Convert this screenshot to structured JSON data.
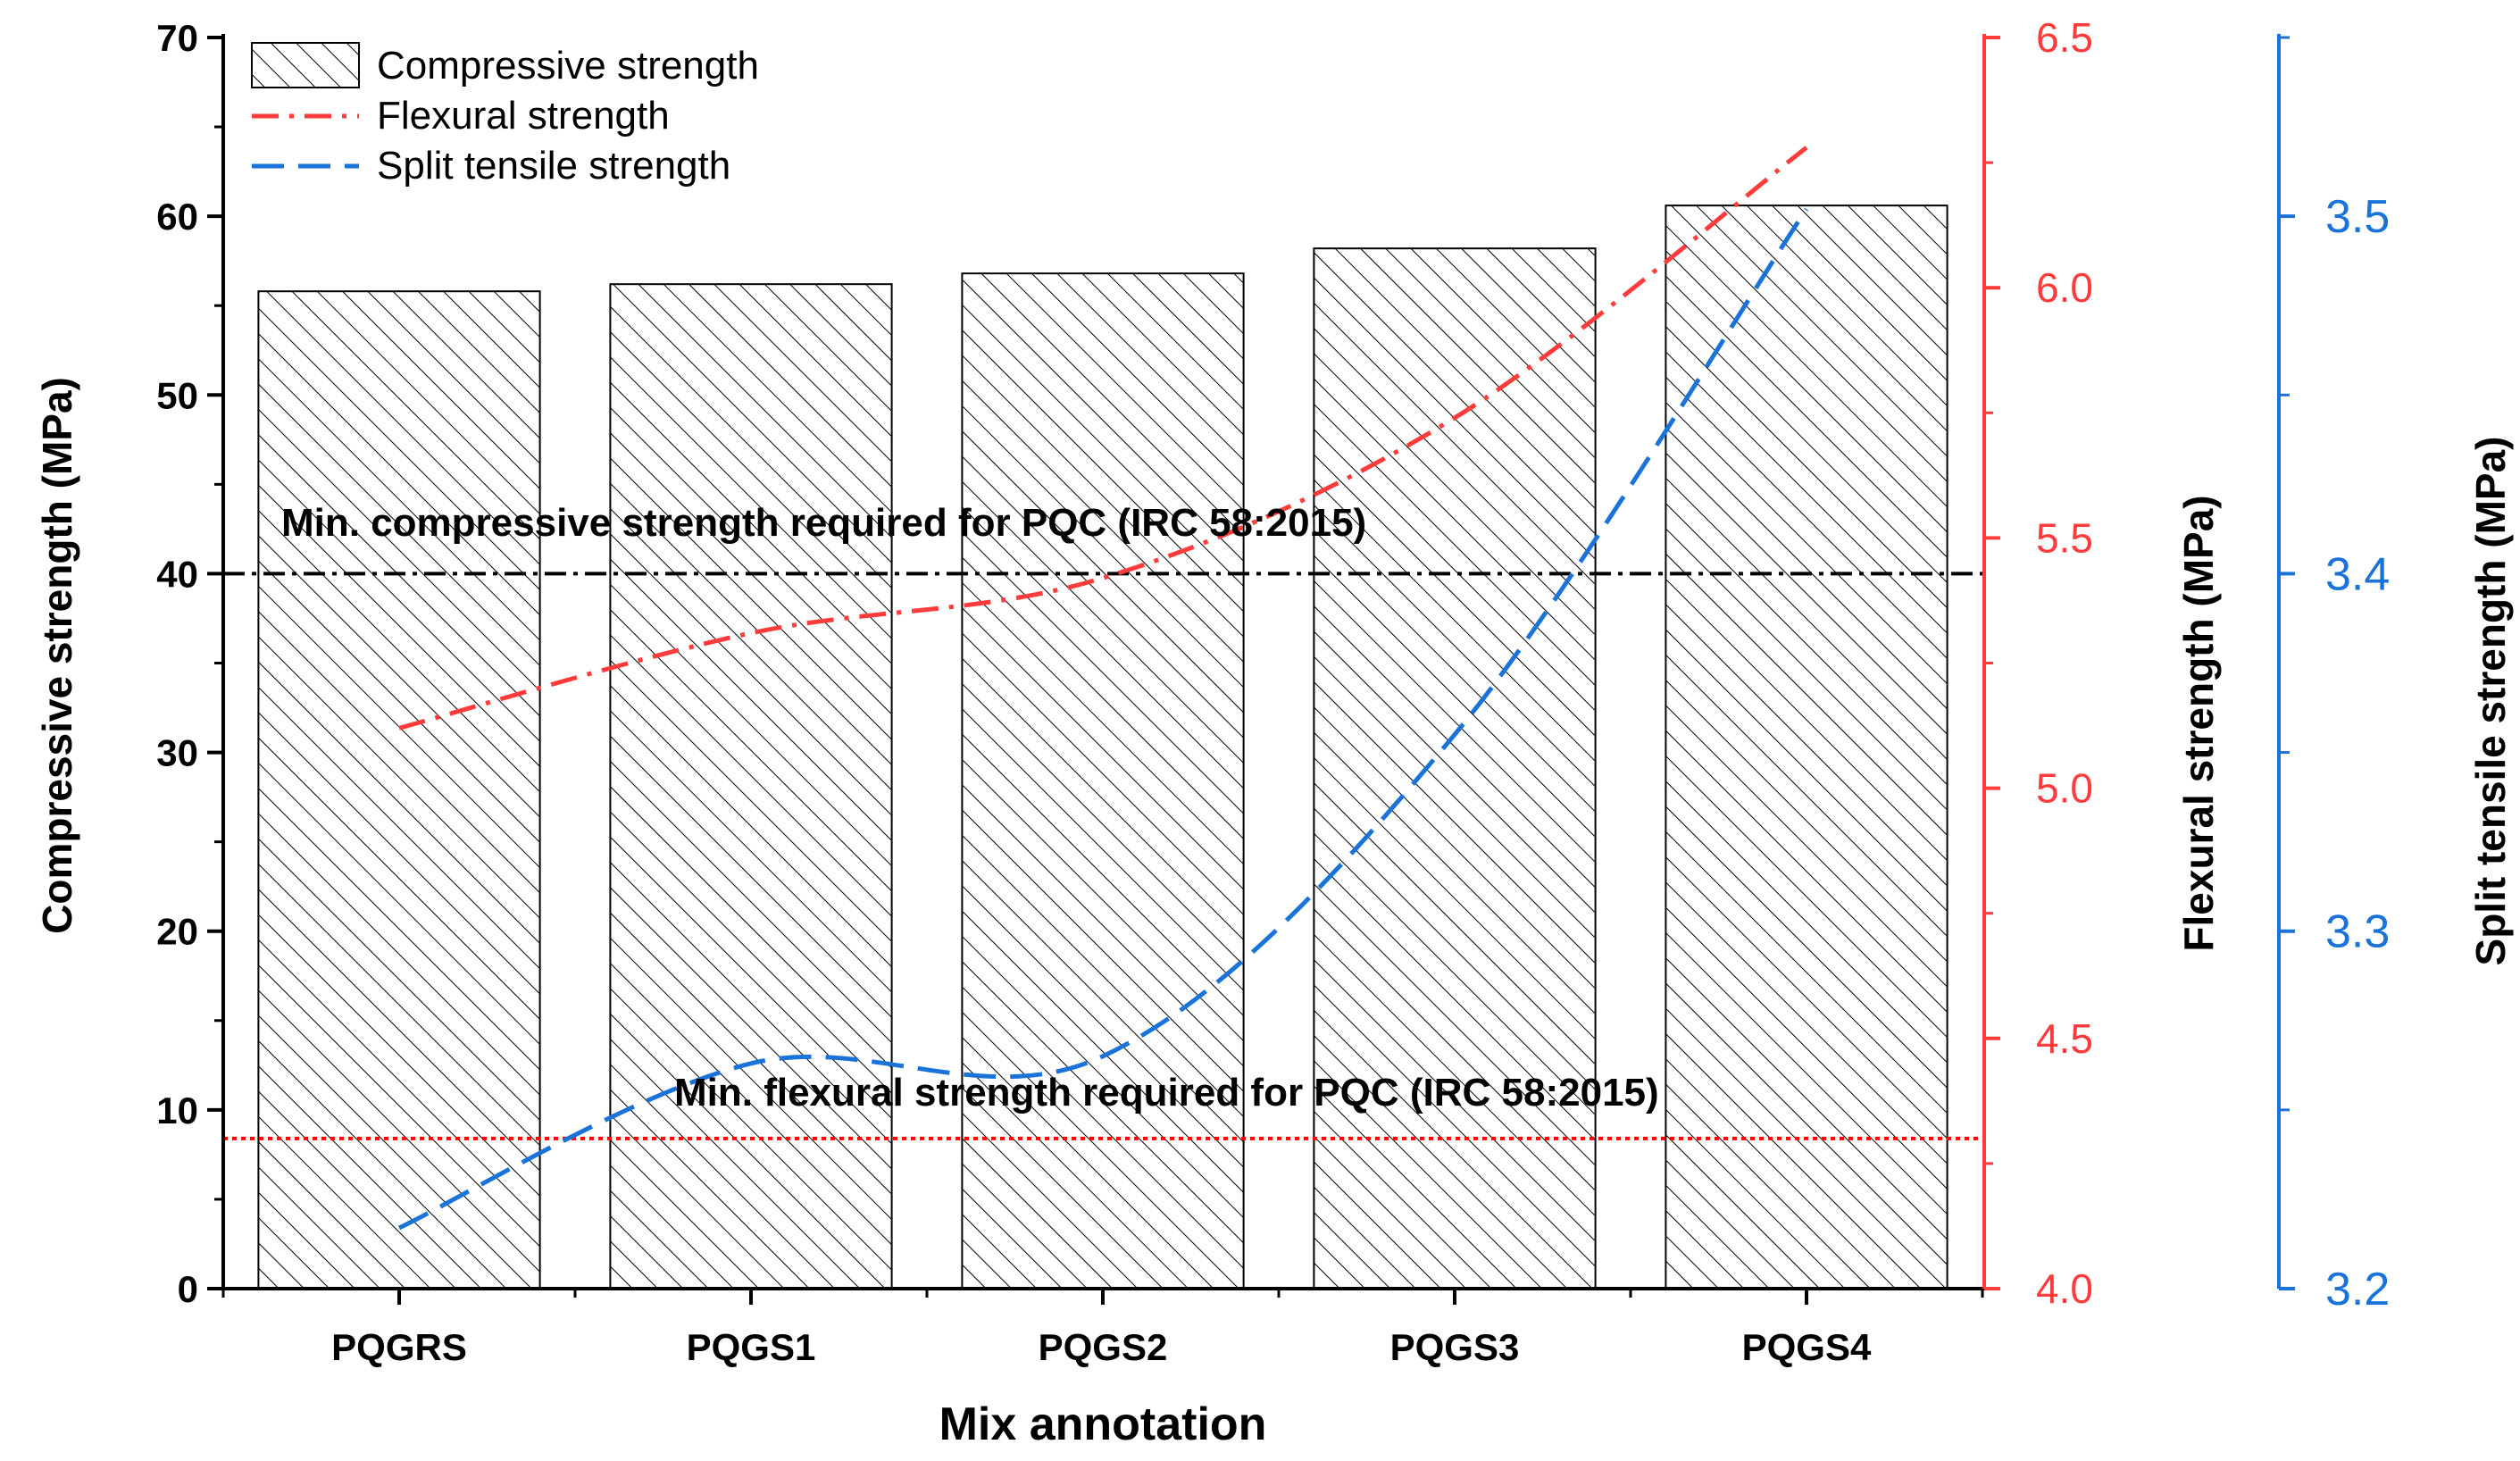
{
  "chart_data": {
    "type": "bar",
    "categories": [
      "PQGRS",
      "PQGS1",
      "PQGS2",
      "PQGS3",
      "PQGS4"
    ],
    "xlabel": "Mix annotation",
    "series": [
      {
        "name": "Compressive strength",
        "type": "bar",
        "axis": "left",
        "values": [
          55.8,
          56.2,
          56.8,
          58.2,
          60.6
        ],
        "color": "#000000"
      },
      {
        "name": "Flexural strength",
        "type": "line",
        "axis": "right1",
        "values": [
          5.12,
          5.31,
          5.42,
          5.74,
          6.28
        ],
        "color": "#ff3b3b"
      },
      {
        "name": "Split tensile strength",
        "type": "line",
        "axis": "right2",
        "values": [
          3.217,
          3.263,
          3.265,
          3.355,
          3.502
        ],
        "color": "#1a73d9"
      }
    ],
    "axes": {
      "left": {
        "label": "Compressive strength (MPa)",
        "ylim": [
          0,
          70
        ],
        "ticks": [
          "0",
          "10",
          "20",
          "30",
          "40",
          "50",
          "60",
          "70"
        ],
        "color": "#000000"
      },
      "right1": {
        "label": "Flexural strength (MPa)",
        "ylim": [
          4.0,
          6.5
        ],
        "ticks": [
          "4.0",
          "4.5",
          "5.0",
          "5.5",
          "6.0",
          "6.5"
        ],
        "color": "#ff3b3b"
      },
      "right2": {
        "label": "Split tensile strength (MPa)",
        "ylim": [
          3.2,
          3.55
        ],
        "ticks": [
          "3.2",
          "3.3",
          "3.4",
          "3.5"
        ],
        "color": "#1a73d9"
      }
    },
    "reference_lines": [
      {
        "label": "Min. compressive strength required for PQC (IRC 58:2015)",
        "value": 40,
        "axis": "left",
        "color": "#000000",
        "style": "dash-dot"
      },
      {
        "label": "Min. flexural strength required for PQC (IRC 58:2015)",
        "value": 4.3,
        "axis": "right1",
        "color": "#ff0000",
        "style": "dotted"
      }
    ],
    "legend": {
      "placement": "top-left"
    },
    "grid": false
  }
}
